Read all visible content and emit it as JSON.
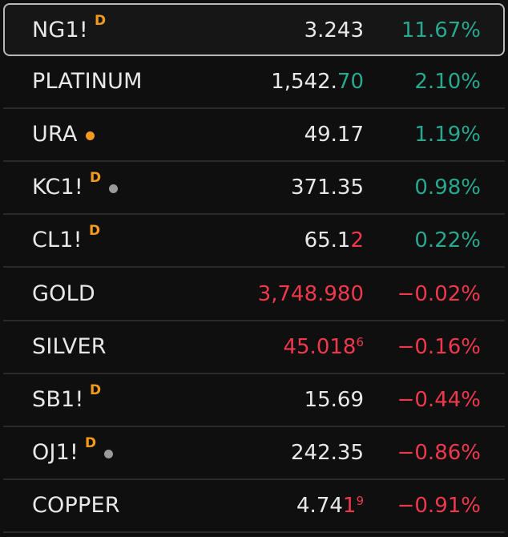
{
  "watchlist": {
    "rows": [
      {
        "symbol": "NG1!",
        "badge": "D",
        "dot": null,
        "price_main": "3.243",
        "price_tail": "",
        "price_sup": "",
        "price_color": "default",
        "change": "11.67%",
        "direction": "up",
        "selected": true
      },
      {
        "symbol": "PLATINUM",
        "badge": null,
        "dot": null,
        "price_main": "1,542.",
        "price_tail": "70",
        "price_sup": "",
        "price_color": "tail-up",
        "change": "2.10%",
        "direction": "up",
        "selected": false
      },
      {
        "symbol": "URA",
        "badge": null,
        "dot": "orange",
        "price_main": "49.17",
        "price_tail": "",
        "price_sup": "",
        "price_color": "default",
        "change": "1.19%",
        "direction": "up",
        "selected": false
      },
      {
        "symbol": "KC1!",
        "badge": "D",
        "dot": "gray",
        "price_main": "371.35",
        "price_tail": "",
        "price_sup": "",
        "price_color": "default",
        "change": "0.98%",
        "direction": "up",
        "selected": false
      },
      {
        "symbol": "CL1!",
        "badge": "D",
        "dot": null,
        "price_main": "65.1",
        "price_tail": "2",
        "price_sup": "",
        "price_color": "tail-down",
        "change": "0.22%",
        "direction": "up",
        "selected": false
      },
      {
        "symbol": "GOLD",
        "badge": null,
        "dot": null,
        "price_main": "3,748.980",
        "price_tail": "",
        "price_sup": "",
        "price_color": "all-down",
        "change": "−0.02%",
        "direction": "down",
        "selected": false
      },
      {
        "symbol": "SILVER",
        "badge": null,
        "dot": null,
        "price_main": "45.018",
        "price_tail": "",
        "price_sup": "6",
        "price_color": "all-down",
        "change": "−0.16%",
        "direction": "down",
        "selected": false
      },
      {
        "symbol": "SB1!",
        "badge": "D",
        "dot": null,
        "price_main": "15.69",
        "price_tail": "",
        "price_sup": "",
        "price_color": "default",
        "change": "−0.44%",
        "direction": "down",
        "selected": false
      },
      {
        "symbol": "OJ1!",
        "badge": "D",
        "dot": "gray",
        "price_main": "242.35",
        "price_tail": "",
        "price_sup": "",
        "price_color": "default",
        "change": "−0.86%",
        "direction": "down",
        "selected": false
      },
      {
        "symbol": "COPPER",
        "badge": null,
        "dot": null,
        "price_main": "4.74",
        "price_tail": "1",
        "price_sup": "9",
        "price_color": "tail-down",
        "change": "−0.91%",
        "direction": "down",
        "selected": false
      }
    ]
  },
  "colors": {
    "up": "#27a88f",
    "down": "#f0384c",
    "badge": "#f29a1e",
    "text": "#e8e8e8",
    "background": "#0f0f0f",
    "selected_border": "#b8b8b8"
  }
}
